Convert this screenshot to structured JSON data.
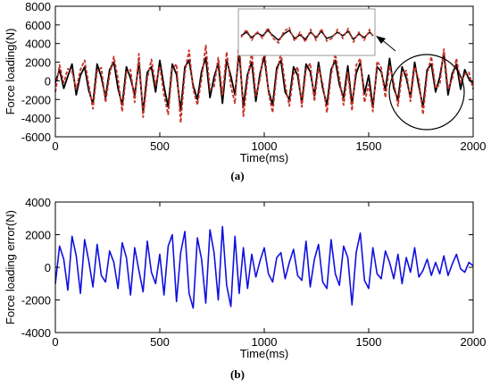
{
  "chart_data": [
    {
      "panel_label": "(a)",
      "type": "line",
      "xlabel": "Time(ms)",
      "ylabel": "Force loading(N)",
      "xlim": [
        0,
        2000
      ],
      "ylim": [
        -6000,
        8000
      ],
      "xticks": [
        0,
        500,
        1000,
        1500,
        2000
      ],
      "yticks": [
        -6000,
        -4000,
        -2000,
        0,
        2000,
        4000,
        6000,
        8000
      ],
      "colors": {
        "reference": "#000000",
        "measured": "#c83228",
        "inset_border": "#999999"
      },
      "series": [
        {
          "x": [
            0,
            20,
            40,
            60,
            80,
            100,
            120,
            140,
            160,
            180,
            200,
            220,
            240,
            260,
            280,
            300,
            320,
            340,
            360,
            380,
            400,
            420,
            440,
            460,
            480,
            500,
            520,
            540,
            560,
            580,
            600,
            620,
            640,
            660,
            680,
            700,
            720,
            740,
            760,
            780,
            800,
            820,
            840,
            860,
            880,
            900,
            920,
            940,
            960,
            980,
            1000,
            1020,
            1040,
            1060,
            1080,
            1100,
            1120,
            1140,
            1160,
            1180,
            1200,
            1220,
            1240,
            1260,
            1280,
            1300,
            1320,
            1340,
            1360,
            1380,
            1400,
            1420,
            1440,
            1460,
            1480,
            1500,
            1520,
            1540,
            1560,
            1580,
            1600,
            1620,
            1640,
            1660,
            1680,
            1700,
            1720,
            1740,
            1760,
            1780,
            1800,
            1820,
            1840,
            1860,
            1880,
            1900,
            1920,
            1940,
            1960,
            1980,
            2000
          ],
          "y": [
            -200,
            1200,
            -800,
            500,
            1800,
            -1500,
            600,
            1500,
            -1000,
            -2500,
            1800,
            400,
            -1800,
            1200,
            2000,
            -800,
            -2600,
            1500,
            300,
            -1500,
            2000,
            -3400,
            900,
            1500,
            -1200,
            2200,
            -600,
            -2800,
            1800,
            700,
            -3200,
            1500,
            2200,
            -500,
            -2000,
            1000,
            2500,
            -1800,
            400,
            1900,
            -2400,
            2200,
            500,
            -1500,
            3200,
            -2800,
            700,
            2000,
            -2200,
            800,
            2600,
            -1000,
            -2600,
            1400,
            2200,
            -1200,
            -2000,
            1500,
            600,
            -2400,
            1800,
            1000,
            -1600,
            2000,
            -800,
            -2600,
            1200,
            2200,
            -400,
            -1800,
            1600,
            -2500,
            800,
            2000,
            -1400,
            600,
            -2800,
            1500,
            1000,
            -1000,
            2400,
            -800,
            -2000,
            1500,
            300,
            -1800,
            2000,
            -600,
            -2800,
            1200,
            1800,
            -1200,
            400,
            3000,
            -1500,
            800,
            1800,
            -900,
            1200,
            200,
            -300
          ]
        },
        {
          "x": [
            0,
            20,
            40,
            60,
            80,
            100,
            120,
            140,
            160,
            180,
            200,
            220,
            240,
            260,
            280,
            300,
            320,
            340,
            360,
            380,
            400,
            420,
            440,
            460,
            480,
            500,
            520,
            540,
            560,
            580,
            600,
            620,
            640,
            660,
            680,
            700,
            720,
            740,
            760,
            780,
            800,
            820,
            840,
            860,
            880,
            900,
            920,
            940,
            960,
            980,
            1000,
            1020,
            1040,
            1060,
            1080,
            1100,
            1120,
            1140,
            1160,
            1180,
            1200,
            1220,
            1240,
            1260,
            1280,
            1300,
            1320,
            1340,
            1360,
            1380,
            1400,
            1420,
            1440,
            1460,
            1480,
            1500,
            1520,
            1540,
            1560,
            1580,
            1600,
            1620,
            1640,
            1660,
            1680,
            1700,
            1720,
            1740,
            1760,
            1780,
            1800,
            1820,
            1840,
            1860,
            1880,
            1900,
            1920,
            1940,
            1960,
            1980,
            2000
          ],
          "y": [
            -1200,
            1700,
            -200,
            1300,
            1000,
            -900,
            1200,
            2200,
            -400,
            -3000,
            1100,
            1400,
            -2300,
            600,
            2600,
            200,
            -3300,
            900,
            1200,
            -2300,
            2900,
            -3900,
            200,
            2300,
            -500,
            1600,
            -1500,
            -3600,
            1300,
            1800,
            -4500,
            900,
            3300,
            -900,
            -2600,
            200,
            3800,
            -900,
            -600,
            2500,
            -1600,
            3100,
            -600,
            -2400,
            4500,
            -3800,
            100,
            3100,
            -1600,
            200,
            3600,
            -1200,
            -3400,
            800,
            3000,
            -400,
            -2700,
            700,
            1500,
            -2800,
            1200,
            1900,
            -2200,
            1400,
            -300,
            -3400,
            600,
            2900,
            300,
            -2600,
            900,
            -3200,
            1700,
            2400,
            -2300,
            -400,
            -3300,
            2100,
            1400,
            -1800,
            1600,
            -200,
            -2700,
            800,
            1100,
            -2200,
            1500,
            100,
            -3600,
            700,
            2600,
            -800,
            -400,
            3400,
            -900,
            200,
            2400,
            -200,
            700,
            900,
            -900
          ]
        }
      ]
    },
    {
      "panel_label": "(b)",
      "type": "line",
      "xlabel": "Time(ms)",
      "ylabel": "Force loading error(N)",
      "xlim": [
        0,
        2000
      ],
      "ylim": [
        -4000,
        4000
      ],
      "xticks": [
        0,
        500,
        1000,
        1500,
        2000
      ],
      "yticks": [
        -4000,
        -2000,
        0,
        2000,
        4000
      ],
      "colors": {
        "error": "#1010e0"
      },
      "series": [
        {
          "x": [
            0,
            20,
            40,
            60,
            80,
            100,
            120,
            140,
            160,
            180,
            200,
            220,
            240,
            260,
            280,
            300,
            320,
            340,
            360,
            380,
            400,
            420,
            440,
            460,
            480,
            500,
            520,
            540,
            560,
            580,
            600,
            620,
            640,
            660,
            680,
            700,
            720,
            740,
            760,
            780,
            800,
            820,
            840,
            860,
            880,
            900,
            920,
            940,
            960,
            980,
            1000,
            1020,
            1040,
            1060,
            1080,
            1100,
            1120,
            1140,
            1160,
            1180,
            1200,
            1220,
            1240,
            1260,
            1280,
            1300,
            1320,
            1340,
            1360,
            1380,
            1400,
            1420,
            1440,
            1460,
            1480,
            1500,
            1520,
            1540,
            1560,
            1580,
            1600,
            1620,
            1640,
            1660,
            1680,
            1700,
            1720,
            1740,
            1760,
            1780,
            1800,
            1820,
            1840,
            1860,
            1880,
            1900,
            1920,
            1940,
            1960,
            1980,
            2000
          ],
          "y": [
            -1000,
            1300,
            500,
            -1400,
            1900,
            700,
            -1600,
            1700,
            400,
            -1200,
            1400,
            -500,
            -900,
            1000,
            300,
            -1300,
            1500,
            600,
            -1700,
            1200,
            -200,
            -1500,
            1600,
            -300,
            -1000,
            800,
            -1700,
            1300,
            2000,
            -2100,
            900,
            2200,
            -1600,
            -2500,
            1800,
            500,
            -2200,
            2300,
            900,
            -2000,
            2500,
            -1100,
            -2400,
            1900,
            -1600,
            1200,
            -1300,
            800,
            -600,
            400,
            1200,
            -400,
            -900,
            600,
            900,
            -700,
            300,
            1100,
            -500,
            -800,
            1600,
            -1200,
            500,
            1400,
            -900,
            -1300,
            1700,
            -400,
            -1100,
            1300,
            600,
            -2300,
            900,
            2100,
            -800,
            -1300,
            1200,
            -400,
            -700,
            1000,
            300,
            -700,
            800,
            -1000,
            600,
            -300,
            1200,
            -600,
            -200,
            500,
            -500,
            300,
            -400,
            700,
            -500,
            200,
            800,
            -100,
            -300,
            300,
            100
          ]
        }
      ]
    }
  ]
}
